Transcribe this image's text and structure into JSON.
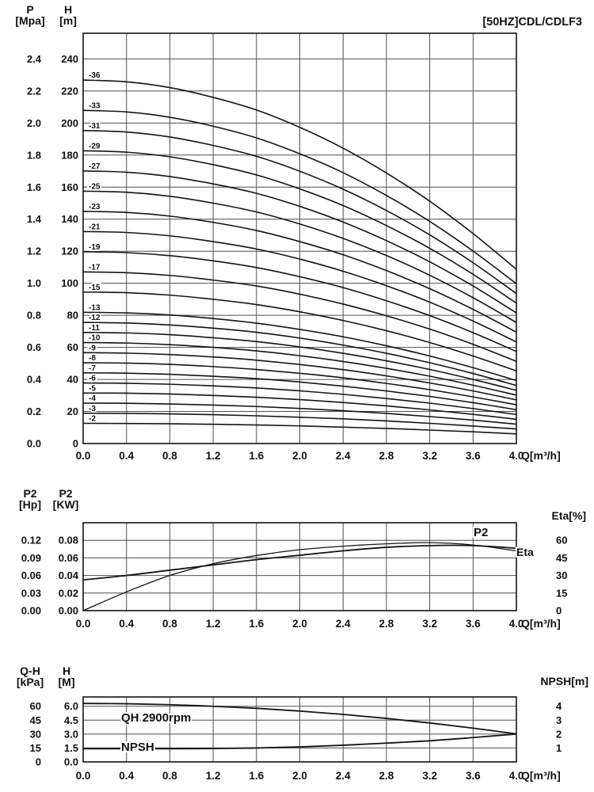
{
  "colors": {
    "background": "#ffffff",
    "grid": "#4f4f4f",
    "curve": "#141414",
    "text": "#111111"
  },
  "chart_data": [
    {
      "type": "line",
      "title": "[50HZ]CDL/CDLF3",
      "xlabel": "Q[m³/h]",
      "x_range": [
        0,
        4
      ],
      "x_ticks": [
        0,
        0.4,
        0.8,
        1.2,
        1.6,
        2,
        2.4,
        2.8,
        3.2,
        3.6,
        4
      ],
      "x_fmt": 1,
      "x": [
        0,
        0.4,
        0.8,
        1.2,
        1.6,
        2,
        2.4,
        2.8,
        3.2,
        3.6,
        4
      ],
      "axes": {
        "left_outer": {
          "label": "P",
          "unit": "[Mpa]",
          "ticks": [
            0,
            0.2,
            0.4,
            0.6,
            0.8,
            1,
            1.2,
            1.4,
            1.6,
            1.8,
            2,
            2.2,
            2.4
          ],
          "fmt": 1,
          "range": [
            0,
            2.56
          ]
        },
        "left_inner": {
          "label": "H",
          "unit": "[m]",
          "ticks": [
            0,
            20,
            40,
            60,
            80,
            100,
            120,
            140,
            160,
            180,
            200,
            220,
            240
          ],
          "fmt": 0,
          "range": [
            0,
            256
          ]
        }
      },
      "series": [
        {
          "name": "-36",
          "axis": "left_inner",
          "values": [
            226.8,
            225.7,
            222.1,
            216.0,
            208.1,
            197.3,
            184.3,
            168.8,
            151.2,
            131.0,
            108.7
          ]
        },
        {
          "name": "-33",
          "axis": "left_inner",
          "values": [
            207.9,
            206.9,
            203.6,
            198.0,
            190.7,
            180.8,
            169.0,
            154.8,
            138.6,
            120.1,
            99.7
          ]
        },
        {
          "name": "-31",
          "axis": "left_inner",
          "values": [
            195.3,
            194.4,
            191.3,
            186.0,
            179.2,
            169.9,
            158.7,
            145.4,
            130.2,
            112.8,
            93.6
          ]
        },
        {
          "name": "-29",
          "axis": "left_inner",
          "values": [
            182.7,
            181.8,
            178.9,
            174.0,
            167.6,
            158.9,
            148.5,
            136.0,
            121.8,
            105.6,
            87.6
          ]
        },
        {
          "name": "-27",
          "axis": "left_inner",
          "values": [
            170.1,
            169.3,
            166.6,
            162.0,
            156.1,
            148.0,
            138.2,
            126.6,
            113.4,
            98.3,
            81.5
          ]
        },
        {
          "name": "-25",
          "axis": "left_inner",
          "values": [
            157.5,
            156.8,
            154.3,
            150.0,
            144.5,
            137.0,
            128.0,
            117.3,
            105.0,
            91.0,
            75.5
          ]
        },
        {
          "name": "-23",
          "axis": "left_inner",
          "values": [
            144.9,
            144.2,
            141.9,
            138.0,
            132.9,
            126.0,
            117.8,
            107.9,
            96.6,
            83.7,
            69.5
          ]
        },
        {
          "name": "-21",
          "axis": "left_inner",
          "values": [
            132.3,
            131.7,
            129.6,
            126.0,
            121.4,
            115.1,
            107.5,
            98.5,
            88.2,
            76.4,
            63.4
          ]
        },
        {
          "name": "-19",
          "axis": "left_inner",
          "values": [
            119.7,
            119.1,
            117.2,
            114.0,
            109.8,
            104.1,
            97.3,
            89.1,
            79.8,
            69.2,
            57.4
          ]
        },
        {
          "name": "-17",
          "axis": "left_inner",
          "values": [
            107.1,
            106.6,
            104.9,
            102.0,
            98.3,
            93.2,
            87.0,
            79.7,
            71.4,
            61.9,
            51.3
          ]
        },
        {
          "name": "-15",
          "axis": "left_inner",
          "values": [
            94.5,
            94.1,
            92.6,
            90.0,
            86.7,
            82.2,
            76.8,
            70.4,
            63.0,
            54.6,
            45.3
          ]
        },
        {
          "name": "-13",
          "axis": "left_inner",
          "values": [
            81.9,
            81.5,
            80.2,
            78.0,
            75.1,
            71.2,
            66.6,
            61.0,
            54.6,
            47.3,
            39.3
          ]
        },
        {
          "name": "-12",
          "axis": "left_inner",
          "values": [
            75.6,
            75.2,
            74.0,
            72.0,
            69.4,
            65.8,
            61.4,
            56.3,
            50.4,
            43.7,
            36.2
          ]
        },
        {
          "name": "-11",
          "axis": "left_inner",
          "values": [
            69.3,
            69.0,
            67.9,
            66.0,
            63.6,
            60.3,
            56.3,
            51.6,
            46.2,
            40.0,
            33.2
          ]
        },
        {
          "name": "-10",
          "axis": "left_inner",
          "values": [
            63.0,
            62.7,
            61.7,
            60.0,
            57.8,
            54.8,
            51.2,
            46.9,
            42.0,
            36.4,
            30.2
          ]
        },
        {
          "name": "-9",
          "axis": "left_inner",
          "values": [
            56.7,
            56.4,
            55.5,
            54.0,
            52.0,
            49.3,
            46.1,
            42.2,
            37.8,
            32.8,
            27.2
          ]
        },
        {
          "name": "-8",
          "axis": "left_inner",
          "values": [
            50.4,
            50.2,
            49.4,
            48.0,
            46.2,
            43.8,
            41.0,
            37.5,
            33.6,
            29.1,
            24.2
          ]
        },
        {
          "name": "-7",
          "axis": "left_inner",
          "values": [
            44.1,
            43.9,
            43.2,
            42.0,
            40.5,
            38.4,
            35.8,
            32.8,
            29.4,
            25.5,
            21.1
          ]
        },
        {
          "name": "-6",
          "axis": "left_inner",
          "values": [
            37.8,
            37.6,
            37.0,
            36.0,
            34.7,
            32.9,
            30.7,
            28.1,
            25.2,
            21.8,
            18.1
          ]
        },
        {
          "name": "-5",
          "axis": "left_inner",
          "values": [
            31.5,
            31.4,
            30.9,
            30.0,
            28.9,
            27.4,
            25.6,
            23.5,
            21.0,
            18.2,
            15.1
          ]
        },
        {
          "name": "-4",
          "axis": "left_inner",
          "values": [
            25.2,
            25.1,
            24.7,
            24.0,
            23.1,
            21.9,
            20.5,
            18.8,
            16.8,
            14.6,
            12.1
          ]
        },
        {
          "name": "-3",
          "axis": "left_inner",
          "values": [
            18.9,
            18.8,
            18.5,
            18.0,
            17.3,
            16.4,
            15.4,
            14.1,
            12.6,
            10.9,
            9.1
          ]
        },
        {
          "name": "-2",
          "axis": "left_inner",
          "values": [
            12.6,
            12.5,
            12.3,
            12.0,
            11.6,
            11.0,
            10.2,
            9.4,
            8.4,
            7.3,
            6.0
          ]
        }
      ]
    },
    {
      "type": "line",
      "title": "",
      "xlabel": "Q[m³/h]",
      "x_range": [
        0,
        4
      ],
      "x_ticks": [
        0,
        0.4,
        0.8,
        1.2,
        1.6,
        2,
        2.4,
        2.8,
        3.2,
        3.6,
        4
      ],
      "x_fmt": 1,
      "x": [
        0,
        0.4,
        0.8,
        1.2,
        1.6,
        2,
        2.4,
        2.8,
        3.2,
        3.6,
        4
      ],
      "axes": {
        "left_outer": {
          "label": "P2",
          "unit": "[Hp]",
          "ticks": [
            0,
            0.03,
            0.06,
            0.09,
            0.12
          ],
          "fmt": 2,
          "range": [
            0,
            0.15
          ]
        },
        "left_inner": {
          "label": "P2",
          "unit": "[KW]",
          "ticks": [
            0,
            0.02,
            0.04,
            0.06,
            0.08
          ],
          "fmt": 2,
          "range": [
            0,
            0.1
          ]
        },
        "right": {
          "label": "Eta[%]",
          "ticks": [
            0,
            15,
            30,
            45,
            60
          ],
          "fmt": 0,
          "range": [
            0,
            75
          ]
        }
      },
      "series": [
        {
          "name": "P2",
          "axis": "left_inner",
          "values": [
            0.035,
            0.04,
            0.046,
            0.052,
            0.058,
            0.063,
            0.068,
            0.072,
            0.074,
            0.074,
            0.071
          ]
        },
        {
          "name": "Eta",
          "axis": "right",
          "values": [
            0,
            16,
            30,
            40,
            47,
            52,
            55,
            57,
            58,
            56,
            51
          ]
        }
      ]
    },
    {
      "type": "line",
      "title": "",
      "xlabel": "Q[m³/h]",
      "x_range": [
        0,
        4
      ],
      "x_ticks": [
        0,
        0.4,
        0.8,
        1.2,
        1.6,
        2,
        2.4,
        2.8,
        3.2,
        3.6,
        4
      ],
      "x_fmt": 1,
      "x": [
        0,
        0.4,
        0.8,
        1.2,
        1.6,
        2,
        2.4,
        2.8,
        3.2,
        3.6,
        4
      ],
      "axes": {
        "left_outer": {
          "label": "Q-H",
          "unit": "[kPa]",
          "ticks": [
            0,
            15,
            30,
            45,
            60
          ],
          "fmt": 0,
          "range": [
            0,
            70
          ]
        },
        "left_inner": {
          "label": "H",
          "unit": "[M]",
          "ticks": [
            0,
            1.5,
            3,
            4.5,
            6
          ],
          "fmt": 1,
          "range": [
            0,
            7
          ]
        },
        "right": {
          "label": "NPSH[m]",
          "ticks": [
            1,
            2,
            3,
            4
          ],
          "fmt": 0,
          "range": [
            0,
            4.6667
          ]
        }
      },
      "series": [
        {
          "name": "QH 2900rpm",
          "axis": "left_inner",
          "values": [
            6.3,
            6.27,
            6.17,
            6.0,
            5.78,
            5.48,
            5.12,
            4.69,
            4.2,
            3.64,
            3.02
          ]
        },
        {
          "name": "NPSH",
          "axis": "right",
          "values": [
            0.95,
            0.95,
            0.95,
            0.96,
            1.0,
            1.08,
            1.2,
            1.35,
            1.52,
            1.75,
            2.0
          ]
        }
      ]
    }
  ]
}
